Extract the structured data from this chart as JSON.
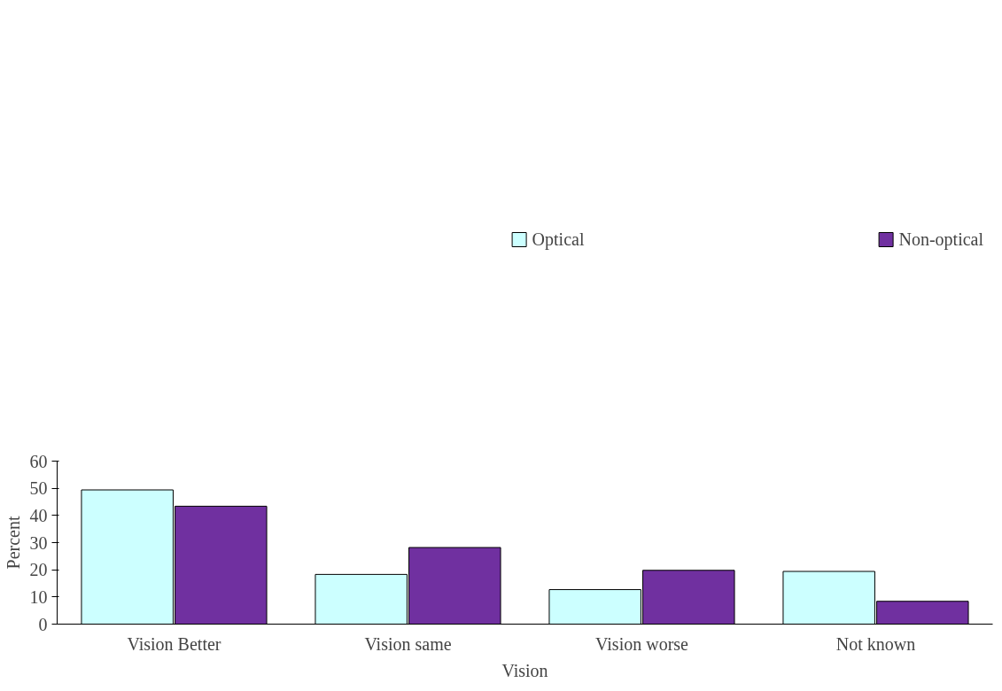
{
  "chart_data": {
    "type": "bar",
    "xlabel": "Vision",
    "ylabel": "Percent",
    "categories": [
      "Vision Better",
      "Vision same",
      "Vision worse",
      "Not known"
    ],
    "series": [
      {
        "name": "Optical",
        "color": "#ccffff",
        "values": [
          49.4,
          18.3,
          12.7,
          19.4
        ]
      },
      {
        "name": "Non-optical",
        "color": "#7030a0",
        "values": [
          43.4,
          28.2,
          19.8,
          8.4
        ]
      }
    ],
    "ylim": [
      0,
      60
    ],
    "yticks": [
      0,
      10,
      20,
      30,
      40,
      50,
      60
    ],
    "grid": false,
    "legend": "top"
  }
}
